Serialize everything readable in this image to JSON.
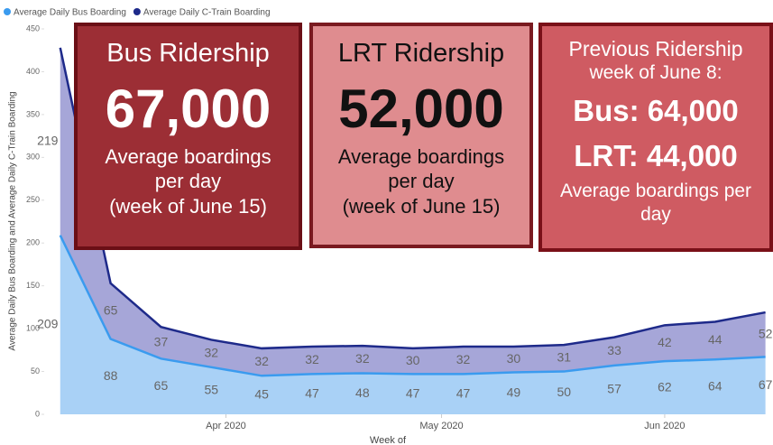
{
  "chart_data": {
    "type": "stacked-area",
    "legend": "top-left",
    "y_label": "Average Daily Bus Boarding and Average Daily C-Train Boarding",
    "x_label": "Week of",
    "x": [
      0,
      1,
      2,
      3,
      4,
      5,
      6,
      7,
      8,
      9,
      10,
      11,
      12,
      13,
      14
    ],
    "xlim": [
      -0.3,
      14.15
    ],
    "xticks": [
      {
        "value": 3.29,
        "label": "Apr 2020"
      },
      {
        "value": 7.57,
        "label": "May 2020"
      },
      {
        "value": 12,
        "label": "Jun 2020"
      }
    ],
    "ylim": [
      0,
      450
    ],
    "yticks": [
      0,
      50,
      100,
      150,
      200,
      250,
      300,
      350,
      400,
      450
    ],
    "series": [
      {
        "name": "Average Daily Bus Boarding",
        "color": "#3a9bef",
        "area_color": "#a9d1f6",
        "values": [
          209,
          88,
          65,
          55,
          45,
          47,
          48,
          47,
          47,
          49,
          50,
          57,
          62,
          64,
          67
        ]
      },
      {
        "name": "Average Daily C-Train Boarding",
        "color": "#1e2a8a",
        "area_color": "#a6a6d8",
        "values": [
          219,
          65,
          37,
          32,
          32,
          32,
          32,
          30,
          32,
          30,
          31,
          33,
          42,
          44,
          52
        ]
      }
    ],
    "annotations": [
      {
        "lines": [
          "Bus Ridership",
          "67,000",
          "Average boardings",
          "per day",
          "(week of June 15)"
        ]
      },
      {
        "lines": [
          "LRT Ridership",
          "52,000",
          "Average boardings",
          "per day",
          "(week of June 15)"
        ]
      },
      {
        "lines": [
          "Previous Ridership",
          "week of June 8:",
          "Bus: 64,000",
          "LRT: 44,000",
          "Average boardings per",
          "day"
        ]
      }
    ]
  }
}
